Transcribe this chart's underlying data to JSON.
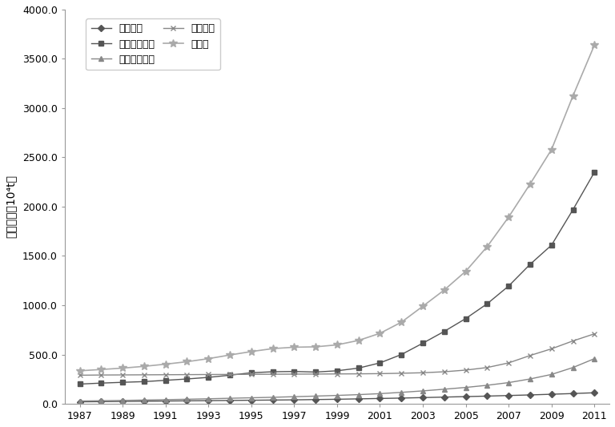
{
  "years": [
    1987,
    1988,
    1989,
    1990,
    1991,
    1992,
    1993,
    1994,
    1995,
    1996,
    1997,
    1998,
    1999,
    2000,
    2001,
    2002,
    2003,
    2004,
    2005,
    2006,
    2007,
    2008,
    2009,
    2010,
    2011
  ],
  "renlei_huxi": [
    20,
    22,
    24,
    26,
    28,
    30,
    32,
    34,
    36,
    38,
    40,
    43,
    46,
    50,
    54,
    58,
    63,
    68,
    73,
    78,
    84,
    90,
    97,
    104,
    112
  ],
  "gongye_nengyuan": [
    200,
    210,
    218,
    225,
    238,
    252,
    268,
    290,
    315,
    325,
    328,
    322,
    335,
    362,
    415,
    500,
    615,
    735,
    865,
    1015,
    1195,
    1415,
    1610,
    1970,
    2350
  ],
  "shenghuo_nengyuan": [
    28,
    31,
    34,
    38,
    42,
    46,
    51,
    56,
    61,
    66,
    72,
    78,
    85,
    93,
    103,
    116,
    131,
    148,
    166,
    188,
    215,
    252,
    298,
    368,
    458
  ],
  "jiaotong_tan": [
    290,
    292,
    293,
    294,
    295,
    296,
    297,
    298,
    299,
    300,
    301,
    302,
    303,
    304,
    306,
    310,
    315,
    325,
    342,
    368,
    415,
    490,
    558,
    638,
    710
  ],
  "zong_tanpai": [
    335,
    348,
    362,
    380,
    402,
    427,
    458,
    495,
    530,
    560,
    574,
    578,
    598,
    643,
    715,
    828,
    990,
    1155,
    1345,
    1595,
    1895,
    2230,
    2580,
    3125,
    3640
  ],
  "ylabel": "碳排放量（10⁴t）",
  "ylim": [
    0,
    4000
  ],
  "yticks": [
    0.0,
    500.0,
    1000.0,
    1500.0,
    2000.0,
    2500.0,
    3000.0,
    3500.0,
    4000.0
  ],
  "ytick_labels": [
    "0.0",
    "500.0",
    "1000.0",
    "1500.0",
    "2000.0",
    "2500.0",
    "3000.0",
    "3500.0",
    "4000.0"
  ],
  "xtick_labels": [
    "1987",
    "1989",
    "1991",
    "1993",
    "1995",
    "1997",
    "1999",
    "2001",
    "2003",
    "2005",
    "2007",
    "2009",
    "2011"
  ],
  "legend_labels": [
    "人类呼吸",
    "工业能源碳排",
    "生活能源碳排",
    "交通碳排",
    "总碳排"
  ],
  "dark_color": "#555555",
  "mid_color": "#888888",
  "light_color": "#aaaaaa",
  "background_color": "#ffffff",
  "fig_width": 7.68,
  "fig_height": 5.33
}
